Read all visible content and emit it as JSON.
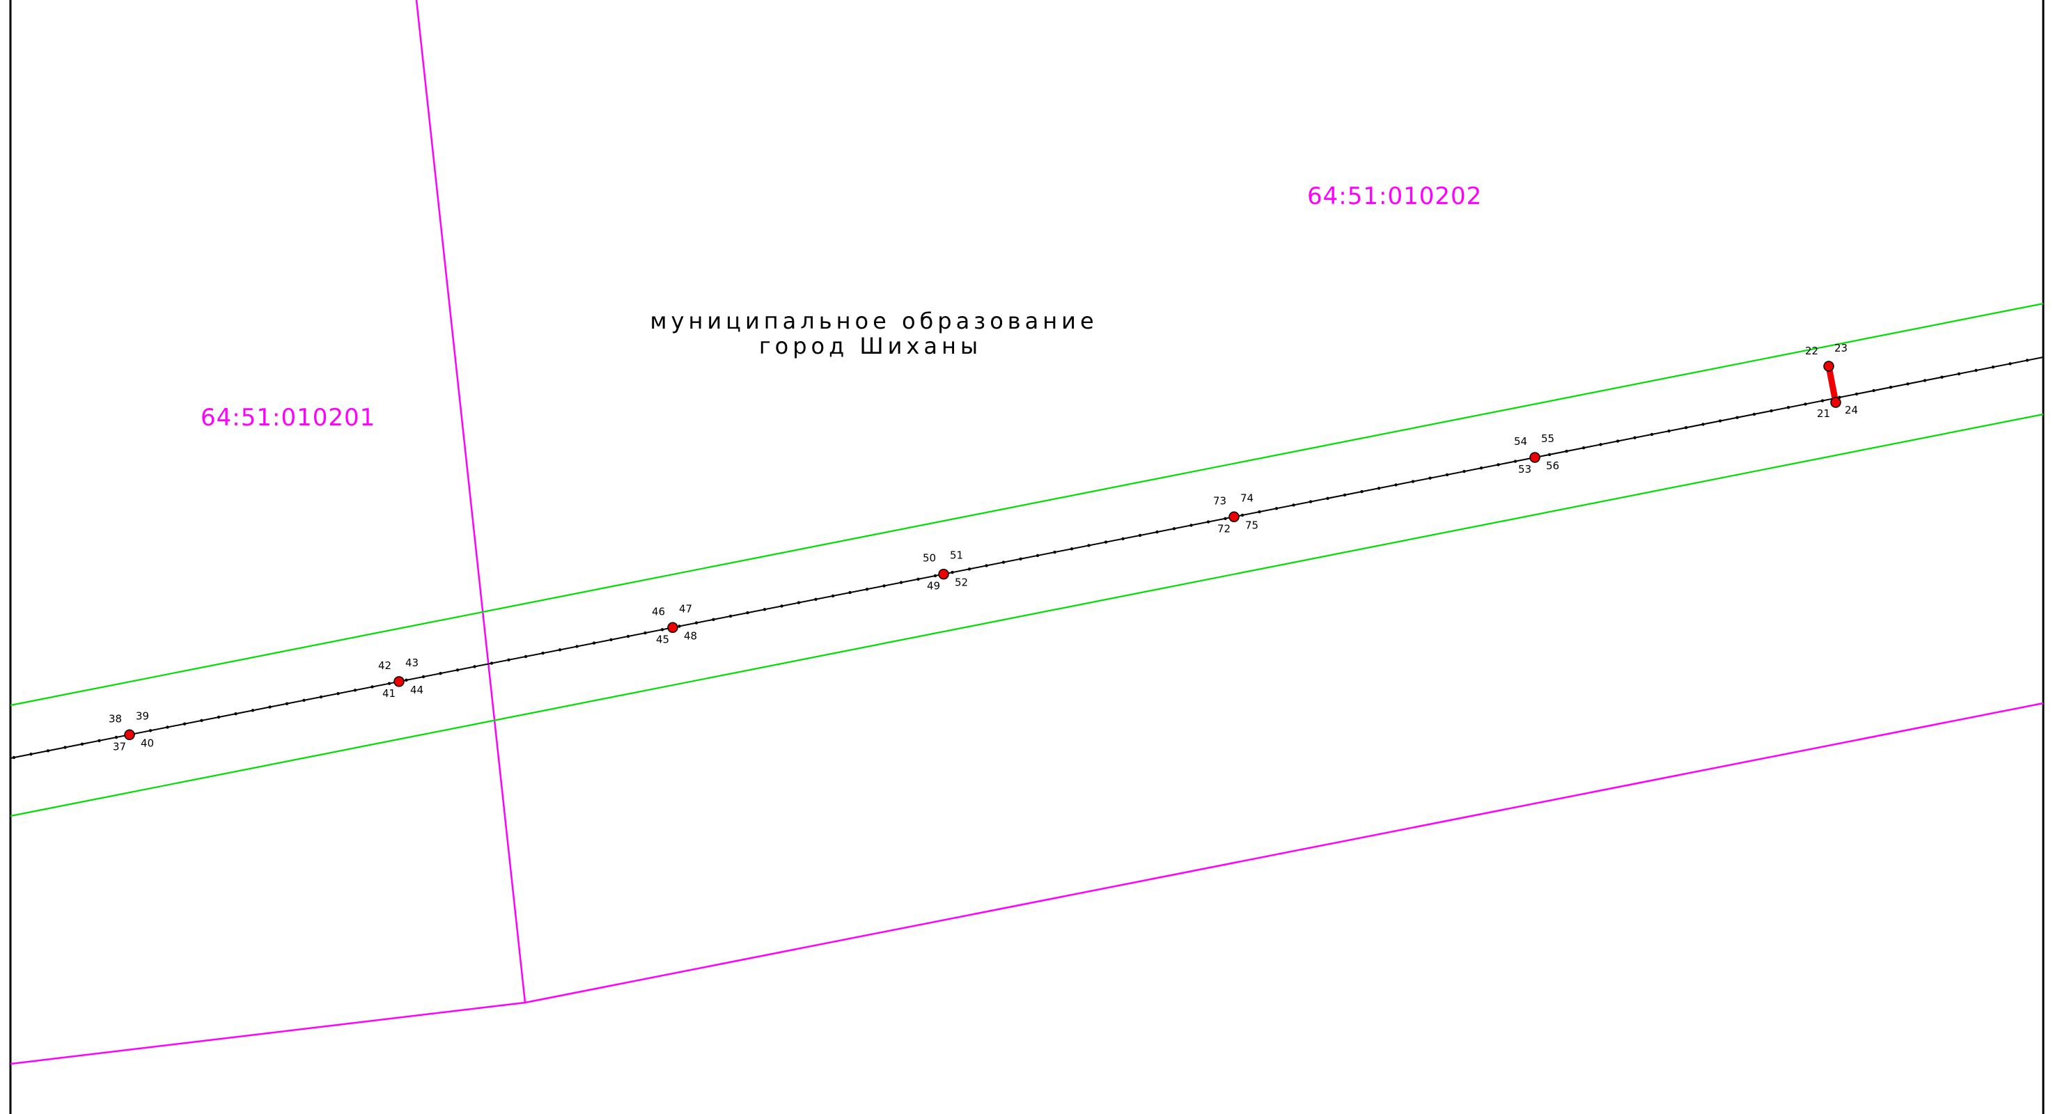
{
  "colors": {
    "background": "#ffffff",
    "frame": "#000000",
    "cadastral_boundary": "#ff00ff",
    "zone_boundary": "#00dd00",
    "axis_line": "#000000",
    "survey_point": "#ee0000"
  },
  "cadastral_quarters": [
    {
      "number": "64:51:010201"
    },
    {
      "number": "64:51:010202"
    }
  ],
  "municipality": {
    "line1": "муниципальное образование",
    "line2": "город Шиханы"
  },
  "survey_nodes": [
    {
      "labels": [
        "38",
        "39",
        "37",
        "40"
      ]
    },
    {
      "labels": [
        "42",
        "43",
        "41",
        "44"
      ]
    },
    {
      "labels": [
        "46",
        "47",
        "45",
        "48"
      ]
    },
    {
      "labels": [
        "50",
        "51",
        "49",
        "52"
      ]
    },
    {
      "labels": [
        "73",
        "74",
        "72",
        "75"
      ]
    },
    {
      "labels": [
        "54",
        "55",
        "53",
        "56"
      ]
    }
  ],
  "crossing_segment": {
    "top_labels": [
      "22",
      "23"
    ],
    "bottom_labels": [
      "21",
      "24"
    ]
  }
}
